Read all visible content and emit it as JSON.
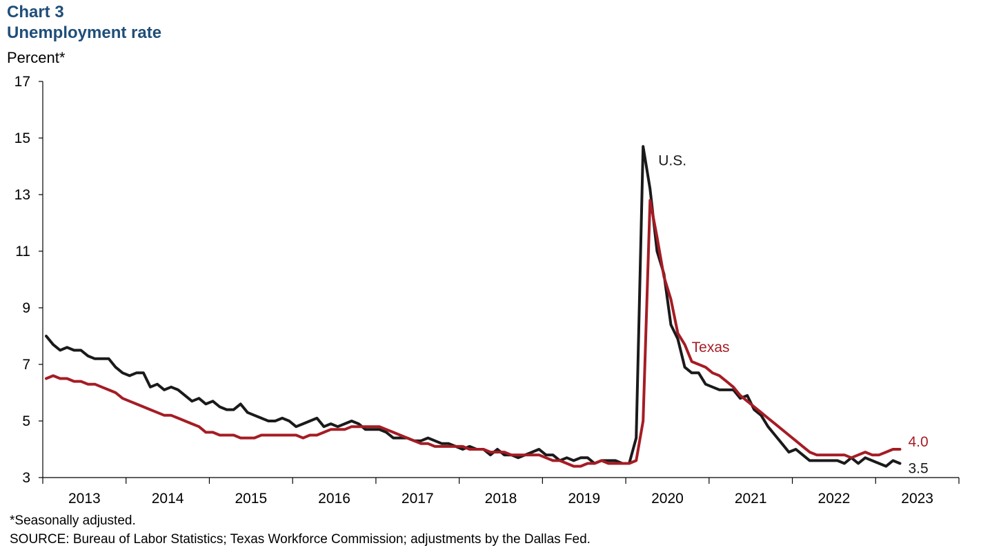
{
  "chart_label": "Chart 3",
  "title": "Unemployment rate",
  "y_unit": "Percent*",
  "footnote": "*Seasonally adjusted.",
  "source": "SOURCE: Bureau of Labor Statistics; Texas Workforce Commission; adjustments  by the Dallas Fed.",
  "chart_data": {
    "type": "line",
    "title": "Unemployment rate",
    "ylabel": "Percent*",
    "xlabel": "",
    "ylim": [
      3,
      17
    ],
    "y_ticks": [
      "17",
      "15",
      "13",
      "11",
      "9",
      "7",
      "5",
      "3"
    ],
    "x_tick_labels": [
      "2013",
      "2014",
      "2015",
      "2016",
      "2017",
      "2018",
      "2019",
      "2020",
      "2021",
      "2022",
      "2023"
    ],
    "x_start": "2013-01",
    "grid": false,
    "legend": "inline labels",
    "series": [
      {
        "name": "U.S.",
        "color": "#1a1a1a",
        "end_label": "3.5",
        "values": [
          8.0,
          7.7,
          7.5,
          7.6,
          7.5,
          7.5,
          7.3,
          7.2,
          7.2,
          7.2,
          6.9,
          6.7,
          6.6,
          6.7,
          6.7,
          6.2,
          6.3,
          6.1,
          6.2,
          6.1,
          5.9,
          5.7,
          5.8,
          5.6,
          5.7,
          5.5,
          5.4,
          5.4,
          5.6,
          5.3,
          5.2,
          5.1,
          5.0,
          5.0,
          5.1,
          5.0,
          4.8,
          4.9,
          5.0,
          5.1,
          4.8,
          4.9,
          4.8,
          4.9,
          5.0,
          4.9,
          4.7,
          4.7,
          4.7,
          4.6,
          4.4,
          4.4,
          4.4,
          4.3,
          4.3,
          4.4,
          4.3,
          4.2,
          4.2,
          4.1,
          4.0,
          4.1,
          4.0,
          4.0,
          3.8,
          4.0,
          3.8,
          3.8,
          3.7,
          3.8,
          3.9,
          4.0,
          3.8,
          3.8,
          3.6,
          3.7,
          3.6,
          3.7,
          3.7,
          3.5,
          3.6,
          3.6,
          3.6,
          3.5,
          3.5,
          4.4,
          14.7,
          13.2,
          11.0,
          10.2,
          8.4,
          7.9,
          6.9,
          6.7,
          6.7,
          6.3,
          6.2,
          6.1,
          6.1,
          6.1,
          5.8,
          5.9,
          5.4,
          5.2,
          4.8,
          4.5,
          4.2,
          3.9,
          4.0,
          3.8,
          3.6,
          3.6,
          3.6,
          3.6,
          3.6,
          3.5,
          3.7,
          3.5,
          3.7,
          3.6,
          3.5,
          3.4,
          3.6,
          3.5
        ]
      },
      {
        "name": "Texas",
        "color": "#a51c24",
        "end_label": "4.0",
        "values": [
          6.5,
          6.6,
          6.5,
          6.5,
          6.4,
          6.4,
          6.3,
          6.3,
          6.2,
          6.1,
          6.0,
          5.8,
          5.7,
          5.6,
          5.5,
          5.4,
          5.3,
          5.2,
          5.2,
          5.1,
          5.0,
          4.9,
          4.8,
          4.6,
          4.6,
          4.5,
          4.5,
          4.5,
          4.4,
          4.4,
          4.4,
          4.5,
          4.5,
          4.5,
          4.5,
          4.5,
          4.5,
          4.4,
          4.5,
          4.5,
          4.6,
          4.7,
          4.7,
          4.7,
          4.8,
          4.8,
          4.8,
          4.8,
          4.8,
          4.7,
          4.6,
          4.5,
          4.4,
          4.3,
          4.2,
          4.2,
          4.1,
          4.1,
          4.1,
          4.1,
          4.1,
          4.0,
          4.0,
          4.0,
          3.9,
          3.9,
          3.9,
          3.8,
          3.8,
          3.8,
          3.8,
          3.8,
          3.7,
          3.6,
          3.6,
          3.5,
          3.4,
          3.4,
          3.5,
          3.5,
          3.6,
          3.5,
          3.5,
          3.5,
          3.5,
          3.6,
          5.0,
          12.8,
          11.5,
          10.1,
          9.3,
          8.1,
          7.7,
          7.1,
          7.0,
          6.9,
          6.7,
          6.6,
          6.4,
          6.2,
          5.9,
          5.7,
          5.5,
          5.3,
          5.1,
          4.9,
          4.7,
          4.5,
          4.3,
          4.1,
          3.9,
          3.8,
          3.8,
          3.8,
          3.8,
          3.8,
          3.7,
          3.8,
          3.9,
          3.8,
          3.8,
          3.9,
          4.0,
          4.0
        ]
      }
    ]
  }
}
